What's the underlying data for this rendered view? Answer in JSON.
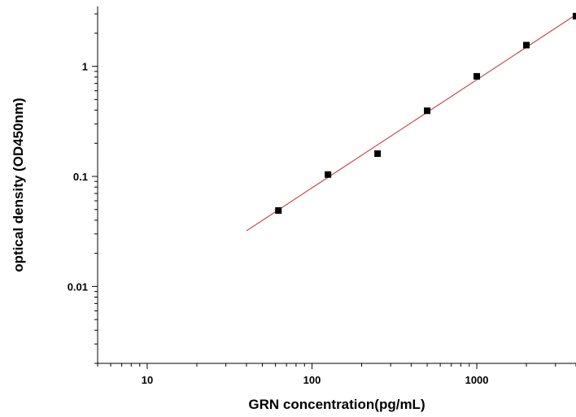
{
  "chart_data": {
    "type": "scatter",
    "xlabel": "GRN concentration(pg/mL)",
    "ylabel": "optical density (OD450nm)",
    "x_scale": "log",
    "y_scale": "log",
    "xlim": [
      5,
      4000
    ],
    "ylim": [
      0.002,
      3.5
    ],
    "x_ticks": [
      {
        "value": 10,
        "label": "10"
      },
      {
        "value": 100,
        "label": "100"
      },
      {
        "value": 1000,
        "label": "1000"
      }
    ],
    "y_ticks": [
      {
        "value": 0.01,
        "label": "0.01"
      },
      {
        "value": 0.1,
        "label": "0.1"
      },
      {
        "value": 1,
        "label": "1"
      }
    ],
    "grid": false,
    "series": [
      {
        "x": [
          62.5,
          125,
          250,
          500,
          1000,
          2000,
          4000
        ],
        "y": [
          0.049,
          0.104,
          0.161,
          0.395,
          0.812,
          1.56,
          2.86
        ],
        "marker": "square",
        "color": "#000000"
      }
    ],
    "fit_line": {
      "x": [
        40,
        4000
      ],
      "y": [
        0.032,
        2.95
      ],
      "color": "#c0504d"
    }
  }
}
